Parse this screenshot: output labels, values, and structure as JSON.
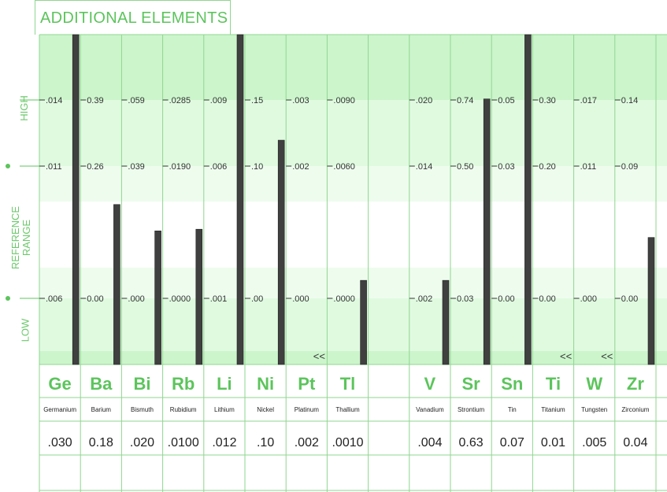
{
  "title": "ADDITIONAL ELEMENTS",
  "side_labels": {
    "high": "HIGH",
    "ref_line1": "REFERENCE",
    "ref_line2": "RANGE",
    "low": "LOW"
  },
  "colors": {
    "green": "#5cc45c",
    "band_dark": "#ccf5cc",
    "band_mid": "#e0fae0",
    "band_light": "#eefcee",
    "bar": "#404040",
    "grid": "#8fd68f"
  },
  "chart_data": {
    "type": "bar",
    "elements": [
      {
        "symbol": "Ge",
        "name": "Germanium",
        "result": ".030",
        "ticks": [
          ".014",
          ".011",
          ".006"
        ],
        "level": 1.0,
        "flag": ""
      },
      {
        "symbol": "Ba",
        "name": "Barium",
        "result": "0.18",
        "ticks": [
          "0.39",
          "0.26",
          "0.00"
        ],
        "level": 0.485,
        "flag": ""
      },
      {
        "symbol": "Bi",
        "name": "Bismuth",
        "result": ".020",
        "ticks": [
          ".059",
          ".039",
          ".000"
        ],
        "level": 0.405,
        "flag": ""
      },
      {
        "symbol": "Rb",
        "name": "Rubidium",
        "result": ".0100",
        "ticks": [
          ".0285",
          ".0190",
          ".0000"
        ],
        "level": 0.41,
        "flag": ""
      },
      {
        "symbol": "Li",
        "name": "Lithium",
        "result": ".012",
        "ticks": [
          ".009",
          ".006",
          ".001"
        ],
        "level": 1.0,
        "flag": ""
      },
      {
        "symbol": "Ni",
        "name": "Nickel",
        "result": ".10",
        "ticks": [
          ".15",
          ".10",
          ".00"
        ],
        "level": 0.68,
        "flag": ""
      },
      {
        "symbol": "Pt",
        "name": "Platinum",
        "result": ".002",
        "ticks": [
          ".003",
          ".002",
          ".000"
        ],
        "level": 0.0,
        "flag": "<<"
      },
      {
        "symbol": "Tl",
        "name": "Thallium",
        "result": ".0010",
        "ticks": [
          ".0090",
          ".0060",
          ".0000"
        ],
        "level": 0.255,
        "flag": ""
      },
      {
        "symbol": "",
        "name": "",
        "result": "",
        "ticks": [
          "",
          "",
          ""
        ],
        "level": 0.0,
        "flag": ""
      },
      {
        "symbol": "V",
        "name": "Vanadium",
        "result": ".004",
        "ticks": [
          ".020",
          ".014",
          ".002"
        ],
        "level": 0.255,
        "flag": ""
      },
      {
        "symbol": "Sr",
        "name": "Strontium",
        "result": "0.63",
        "ticks": [
          "0.74",
          "0.50",
          "0.03"
        ],
        "level": 0.805,
        "flag": ""
      },
      {
        "symbol": "Sn",
        "name": "Tin",
        "result": "0.07",
        "ticks": [
          "0.05",
          "0.03",
          "0.00"
        ],
        "level": 1.0,
        "flag": ""
      },
      {
        "symbol": "Ti",
        "name": "Titanium",
        "result": "0.01",
        "ticks": [
          "0.30",
          "0.20",
          "0.00"
        ],
        "level": 0.0,
        "flag": "<<"
      },
      {
        "symbol": "W",
        "name": "Tungsten",
        "result": ".005",
        "ticks": [
          ".017",
          ".011",
          ".000"
        ],
        "level": 0.0,
        "flag": "<<"
      },
      {
        "symbol": "Zr",
        "name": "Zirconium",
        "result": "0.04",
        "ticks": [
          "0.14",
          "0.09",
          "0.00"
        ],
        "level": 0.385,
        "flag": ""
      }
    ]
  }
}
